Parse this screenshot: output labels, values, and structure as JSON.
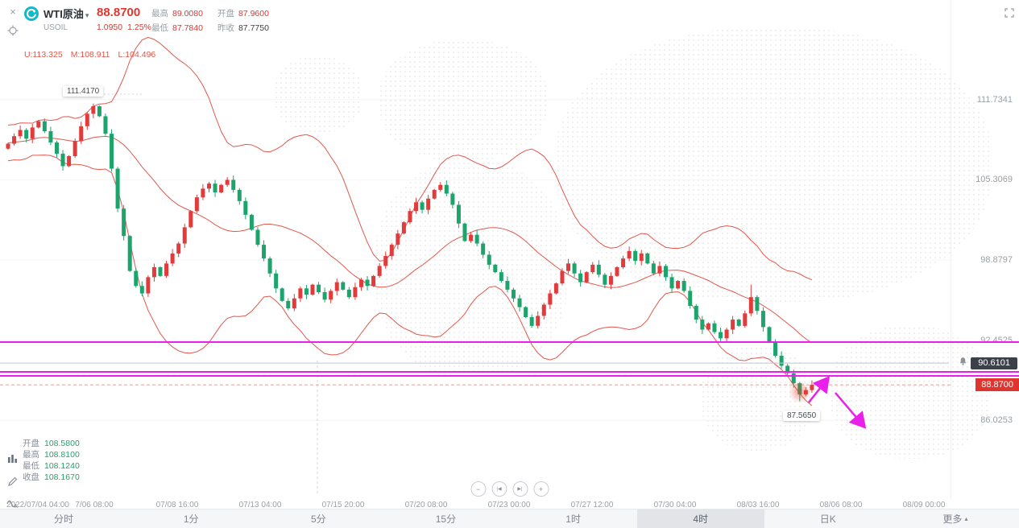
{
  "header": {
    "symbol": "WTI原油",
    "symbol_caret": "▾",
    "code": "USOIL",
    "price": "88.8700",
    "change": "1.0950",
    "change_pct": "1.25%",
    "stats": [
      {
        "label": "最高",
        "value": "89.0080"
      },
      {
        "label": "开盘",
        "value": "87.9600"
      },
      {
        "label": "最低",
        "value": "87.7840"
      },
      {
        "label": "昨收",
        "value": "87.7750"
      }
    ],
    "boll_legend": {
      "u": "U:113.325",
      "m": "M:108.911",
      "l": "L:104.496"
    },
    "close_icon": "×"
  },
  "annotations": {
    "peak_label": "111.4170",
    "low_label": "87.5650",
    "alert_price": "90.6101",
    "current_price_tag": "88.8700"
  },
  "ohlc_box": [
    {
      "label": "开盘",
      "value": "108.5800"
    },
    {
      "label": "最高",
      "value": "108.8100"
    },
    {
      "label": "最低",
      "value": "108.1240"
    },
    {
      "label": "收盘",
      "value": "108.1670"
    }
  ],
  "price_axis": [
    {
      "p": 111.7341,
      "label": "111.7341"
    },
    {
      "p": 105.3069,
      "label": "105.3069"
    },
    {
      "p": 98.8797,
      "label": "98.8797"
    },
    {
      "p": 92.4525,
      "label": "92.4525"
    },
    {
      "p": 86.0253,
      "label": "86.0253"
    }
  ],
  "time_axis": {
    "ticks": [
      "2022/07/04 04:00",
      "7/06 08:00",
      "07/08 16:00",
      "07/13 04:00",
      "07/15 20:00",
      "07/20 08:00",
      "07/23 00:00",
      "07/27 12:00",
      "07/30 04:00",
      "08/03 16:00",
      "08/06 08:00",
      "08/09 00:00"
    ],
    "loading_dots": "●●●●●●"
  },
  "nav_buttons": [
    "−",
    "|◀",
    "▶|",
    "+"
  ],
  "timeframes": [
    {
      "label": "分时",
      "active": false
    },
    {
      "label": "1分",
      "active": false
    },
    {
      "label": "5分",
      "active": false
    },
    {
      "label": "15分",
      "active": false
    },
    {
      "label": "1时",
      "active": false
    },
    {
      "label": "4时",
      "active": true
    },
    {
      "label": "日K",
      "active": false
    },
    {
      "label": "更多",
      "active": false,
      "caret": "▴"
    }
  ],
  "chart_data": {
    "type": "candlestick",
    "symbol": "USOIL WTI原油",
    "timeframe": "4时",
    "first_open": 107.8,
    "closes": [
      108.2,
      108.8,
      109.3,
      108.6,
      109.5,
      110.0,
      109.2,
      108.3,
      107.4,
      106.4,
      107.2,
      108.4,
      109.6,
      110.6,
      111.2,
      110.4,
      109.0,
      106.2,
      103.0,
      100.8,
      98.0,
      96.8,
      96.2,
      97.5,
      98.3,
      97.6,
      98.6,
      99.4,
      100.2,
      101.5,
      102.8,
      103.9,
      104.6,
      105.0,
      104.3,
      104.9,
      105.3,
      104.5,
      103.6,
      102.5,
      101.3,
      100.1,
      99.0,
      97.8,
      96.6,
      95.6,
      95.0,
      95.8,
      96.6,
      96.1,
      96.9,
      96.3,
      95.7,
      96.4,
      97.1,
      96.5,
      95.9,
      96.7,
      97.3,
      96.8,
      97.6,
      98.4,
      99.2,
      100.1,
      101.0,
      101.9,
      102.8,
      103.5,
      102.9,
      103.8,
      104.5,
      104.9,
      104.2,
      103.3,
      101.8,
      100.4,
      100.9,
      100.2,
      99.3,
      98.5,
      97.9,
      97.2,
      96.5,
      95.8,
      95.1,
      94.3,
      93.6,
      94.4,
      95.3,
      96.2,
      97.0,
      98.0,
      98.6,
      97.8,
      97.1,
      97.9,
      98.5,
      97.7,
      96.9,
      97.6,
      98.3,
      99.0,
      99.6,
      98.8,
      99.4,
      98.6,
      97.8,
      98.4,
      97.5,
      96.6,
      97.2,
      96.4,
      95.2,
      94.1,
      93.3,
      93.8,
      93.1,
      92.6,
      93.3,
      94.1,
      93.6,
      94.6,
      95.9,
      94.8,
      93.5,
      92.3,
      91.2,
      90.4,
      89.8,
      89.0,
      88.1,
      88.45,
      88.87
    ],
    "pre_closes": [
      107.0,
      107.6,
      108.2,
      107.5,
      106.9,
      107.8,
      108.5,
      109.2,
      108.6,
      107.8,
      108.9,
      109.6,
      108.8,
      108.0,
      108.4,
      109.2,
      108.3,
      107.5,
      108.0,
      108.2
    ],
    "overrides": {
      "14": {
        "h": 111.417
      },
      "122": {
        "h": 96.9
      },
      "130": {
        "l": 87.565
      }
    },
    "bollinger": {
      "window": 20,
      "mult": 2.2,
      "legend_values": {
        "U": 113.325,
        "M": 108.911,
        "L": 104.496
      }
    },
    "price_ticks": [
      111.7341,
      105.3069,
      98.8797,
      92.4525,
      86.0253
    ],
    "magenta_lines": [
      92.3,
      89.91,
      89.59
    ],
    "alert_line": 90.6101,
    "current_price": 88.87,
    "peak_price": 111.417,
    "low_price": 87.565,
    "colors": {
      "up": "#e23b3c",
      "down": "#1ca46c",
      "band": "#e2574b",
      "magenta": "#ea1fea",
      "alert_line": "#c3c7cc",
      "price_line": "#e0584e"
    }
  }
}
